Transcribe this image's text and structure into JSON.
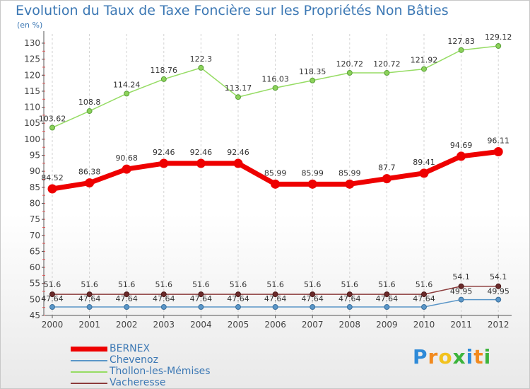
{
  "chart_data": {
    "type": "line",
    "title": "Evolution du Taux de Taxe Foncière sur les Propriétés Non Bâties",
    "ylabel": "(en %)",
    "xlabel": "",
    "ylim": [
      45,
      130
    ],
    "yticks": [
      45,
      50,
      55,
      60,
      65,
      70,
      75,
      80,
      85,
      90,
      95,
      100,
      105,
      110,
      115,
      120,
      125,
      130
    ],
    "categories": [
      "2000",
      "2001",
      "2002",
      "2003",
      "2004",
      "2005",
      "2006",
      "2007",
      "2008",
      "2009",
      "2010",
      "2011",
      "2012"
    ],
    "grid": "vertical dashed",
    "legend_position": "bottom-left",
    "series": [
      {
        "name": "BERNEX",
        "color": "#ee0000",
        "values": [
          84.52,
          86.38,
          90.68,
          92.46,
          92.46,
          92.46,
          85.99,
          85.99,
          85.99,
          87.7,
          89.41,
          94.69,
          96.11
        ],
        "labels": [
          "84.52",
          "86.38",
          "90.68",
          "92.46",
          "92.46",
          "92.46",
          "85.99",
          "85.99",
          "85.99",
          "87.7",
          "89.41",
          "94.69",
          "96.11"
        ]
      },
      {
        "name": "Chevenoz",
        "color": "#5a96c8",
        "values": [
          47.64,
          47.64,
          47.64,
          47.64,
          47.64,
          47.64,
          47.64,
          47.64,
          47.64,
          47.64,
          47.64,
          49.95,
          49.95
        ],
        "labels": [
          "47.64",
          "47.64",
          "47.64",
          "47.64",
          "47.64",
          "47.64",
          "47.64",
          "47.64",
          "47.64",
          "47.64",
          "47.64",
          "49.95",
          "49.95"
        ]
      },
      {
        "name": "Thollon-les-Mémises",
        "color": "#96dc64",
        "values": [
          103.62,
          108.8,
          114.24,
          118.76,
          122.3,
          113.17,
          116.03,
          118.35,
          120.72,
          120.72,
          121.92,
          127.83,
          129.12
        ],
        "labels": [
          "103.62",
          "108.8",
          "114.24",
          "118.76",
          "122.3",
          "113.17",
          "116.03",
          "118.35",
          "120.72",
          "120.72",
          "121.92",
          "127.83",
          "129.12"
        ]
      },
      {
        "name": "Vacheresse",
        "color": "#8c3c3c",
        "values": [
          51.6,
          51.6,
          51.6,
          51.6,
          51.6,
          51.6,
          51.6,
          51.6,
          51.6,
          51.6,
          51.6,
          54.1,
          54.1
        ],
        "labels": [
          "51.6",
          "51.6",
          "51.6",
          "51.6",
          "51.6",
          "51.6",
          "51.6",
          "51.6",
          "51.6",
          "51.6",
          "51.6",
          "54.1",
          "54.1"
        ]
      }
    ]
  },
  "logo": {
    "letters": [
      "P",
      "r",
      "o",
      "x",
      "i",
      "t",
      "i"
    ],
    "colors": [
      "#2e8ad8",
      "#f28a1e",
      "#f2c21e",
      "#3cb43c",
      "#2e8ad8",
      "#f28a1e",
      "#3cb43c"
    ]
  }
}
